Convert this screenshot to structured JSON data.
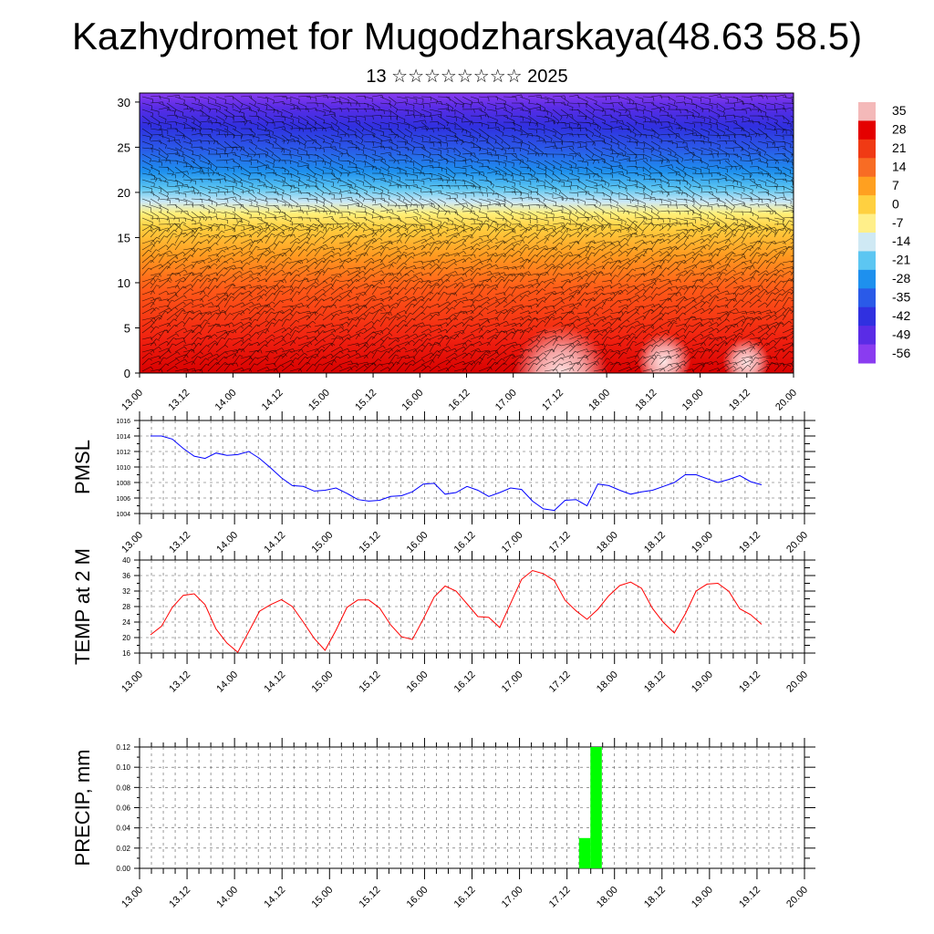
{
  "title": "Kazhydromet for Mugodzharskaya(48.63 58.5)",
  "subtitle": "13 ☆☆☆☆☆☆☆☆ 2025",
  "chart_data": [
    {
      "type": "heatmap",
      "name": "temperature-wind cross section",
      "x_ticks": [
        "13.00",
        "13.12",
        "14.00",
        "14.12",
        "15.00",
        "15.12",
        "16.00",
        "16.12",
        "17.00",
        "17.12",
        "18.00",
        "18.12",
        "19.00",
        "19.12",
        "20.00"
      ],
      "y_ticks": [
        "0",
        "5",
        "10",
        "15",
        "20",
        "25",
        "30"
      ],
      "ylim": [
        0,
        31
      ],
      "colorbar_labels": [
        "35",
        "28",
        "21",
        "14",
        "7",
        "0",
        "-7",
        "-14",
        "-21",
        "-28",
        "-35",
        "-42",
        "-49",
        "-56"
      ],
      "colorbar_colors": [
        "#f4b9b9",
        "#e40000",
        "#f03a14",
        "#f86c24",
        "#ffa020",
        "#ffd040",
        "#ffef8a",
        "#cfe9f4",
        "#5cc6f2",
        "#1e90ee",
        "#2a5ae8",
        "#3030e0",
        "#5a2ce6",
        "#8a3cf0"
      ],
      "wind_barbs": true
    },
    {
      "type": "line",
      "ylabel": "PMSL",
      "x_ticks": [
        "13.00",
        "13.12",
        "14.00",
        "14.12",
        "15.00",
        "15.12",
        "16.00",
        "16.12",
        "17.00",
        "17.12",
        "18.00",
        "18.12",
        "19.00",
        "19.12",
        "20.00"
      ],
      "ylim": [
        1004,
        1016
      ],
      "y_ticks": [
        "1004",
        "1006",
        "1008",
        "1010",
        "1012",
        "1014",
        "1016"
      ],
      "color": "#0000ff",
      "values": [
        1014.0,
        1014.0,
        1013.6,
        1012.4,
        1011.4,
        1011.1,
        1011.8,
        1011.5,
        1011.6,
        1012.0,
        1011.1,
        1009.9,
        1008.6,
        1007.6,
        1007.5,
        1006.9,
        1007.0,
        1007.3,
        1006.6,
        1005.8,
        1005.6,
        1005.7,
        1006.2,
        1006.3,
        1006.8,
        1007.8,
        1007.9,
        1006.5,
        1006.7,
        1007.5,
        1007.0,
        1006.2,
        1006.7,
        1007.3,
        1007.1,
        1005.6,
        1004.6,
        1004.4,
        1005.7,
        1005.8,
        1005.0,
        1007.8,
        1007.6,
        1007.0,
        1006.5,
        1006.8,
        1007.0,
        1007.5,
        1008.0,
        1009.0,
        1009.0,
        1008.5,
        1008.0,
        1008.4,
        1008.9,
        1008.1,
        1007.7
      ]
    },
    {
      "type": "line",
      "ylabel": "TEMP at 2 M",
      "x_ticks": [
        "13.00",
        "13.12",
        "14.00",
        "14.12",
        "15.00",
        "15.12",
        "16.00",
        "16.12",
        "17.00",
        "17.12",
        "18.00",
        "18.12",
        "19.00",
        "19.12",
        "20.00"
      ],
      "ylim": [
        16,
        40
      ],
      "y_ticks": [
        "16",
        "20",
        "24",
        "28",
        "32",
        "36",
        "40"
      ],
      "color": "#ff0000",
      "values": [
        20.7,
        22.9,
        27.8,
        30.9,
        31.3,
        28.5,
        22.2,
        18.6,
        16.2,
        21.5,
        26.8,
        28.5,
        29.8,
        28.0,
        24.0,
        19.8,
        16.7,
        21.9,
        27.8,
        29.7,
        29.7,
        27.6,
        23.3,
        20.2,
        19.5,
        24.8,
        30.5,
        33.3,
        32.0,
        28.7,
        25.4,
        25.2,
        22.6,
        28.8,
        35.0,
        37.3,
        36.5,
        34.7,
        29.6,
        26.9,
        24.7,
        27.3,
        30.8,
        33.4,
        34.3,
        32.7,
        27.5,
        23.9,
        21.2,
        26.1,
        32.0,
        33.8,
        34.0,
        31.9,
        27.4,
        25.9,
        23.4
      ]
    },
    {
      "type": "bar",
      "ylabel": "PRECIP, mm",
      "x_ticks": [
        "13.00",
        "13.12",
        "14.00",
        "14.12",
        "15.00",
        "15.12",
        "16.00",
        "16.12",
        "17.00",
        "17.12",
        "18.00",
        "18.12",
        "19.00",
        "19.12",
        "20.00"
      ],
      "ylim": [
        0,
        0.12
      ],
      "y_ticks": [
        "0.00",
        "0.02",
        "0.04",
        "0.06",
        "0.08",
        "0.10",
        "0.12"
      ],
      "color": "#00ff00",
      "bars": [
        {
          "x_step": 38,
          "value": 0.03
        },
        {
          "x_step": 39,
          "value": 0.12
        }
      ]
    }
  ]
}
